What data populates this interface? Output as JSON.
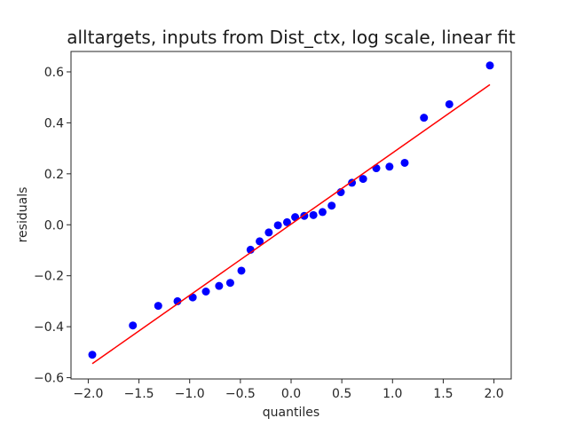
{
  "chart_data": {
    "type": "scatter",
    "title": "alltargets, inputs from Dist_ctx, log scale, linear fit",
    "xlabel": "quantiles",
    "ylabel": "residuals",
    "xlim": [
      -2.17,
      2.17
    ],
    "ylim": [
      -0.605,
      0.68
    ],
    "x_ticks": [
      {
        "value": -2.0,
        "label": "−2.0"
      },
      {
        "value": -1.5,
        "label": "−1.5"
      },
      {
        "value": -1.0,
        "label": "−1.0"
      },
      {
        "value": -0.5,
        "label": "−0.5"
      },
      {
        "value": 0.0,
        "label": "0.0"
      },
      {
        "value": 0.5,
        "label": "0.5"
      },
      {
        "value": 1.0,
        "label": "1.0"
      },
      {
        "value": 1.5,
        "label": "1.5"
      },
      {
        "value": 2.0,
        "label": "2.0"
      }
    ],
    "y_ticks": [
      {
        "value": -0.6,
        "label": "−0.6"
      },
      {
        "value": -0.4,
        "label": "−0.4"
      },
      {
        "value": -0.2,
        "label": "−0.2"
      },
      {
        "value": 0.0,
        "label": "0.0"
      },
      {
        "value": 0.2,
        "label": "0.2"
      },
      {
        "value": 0.4,
        "label": "0.4"
      },
      {
        "value": 0.6,
        "label": "0.6"
      }
    ],
    "grid": false,
    "points": {
      "color": "#0000ff",
      "x": [
        -1.96,
        -1.56,
        -1.31,
        -1.12,
        -0.97,
        -0.84,
        -0.71,
        -0.6,
        -0.49,
        -0.4,
        -0.31,
        -0.22,
        -0.13,
        -0.04,
        0.04,
        0.13,
        0.22,
        0.31,
        0.4,
        0.49,
        0.6,
        0.71,
        0.84,
        0.97,
        1.12,
        1.31,
        1.56,
        1.96
      ],
      "y": [
        -0.51,
        -0.395,
        -0.318,
        -0.3,
        -0.285,
        -0.262,
        -0.24,
        -0.228,
        -0.18,
        -0.098,
        -0.065,
        -0.03,
        -0.002,
        0.01,
        0.03,
        0.035,
        0.038,
        0.05,
        0.075,
        0.128,
        0.165,
        0.18,
        0.222,
        0.228,
        0.243,
        0.42,
        0.473,
        0.625
      ]
    },
    "fit_line": {
      "color": "#ff0000",
      "x": [
        -1.96,
        1.96
      ],
      "y": [
        -0.545,
        0.55
      ]
    }
  }
}
